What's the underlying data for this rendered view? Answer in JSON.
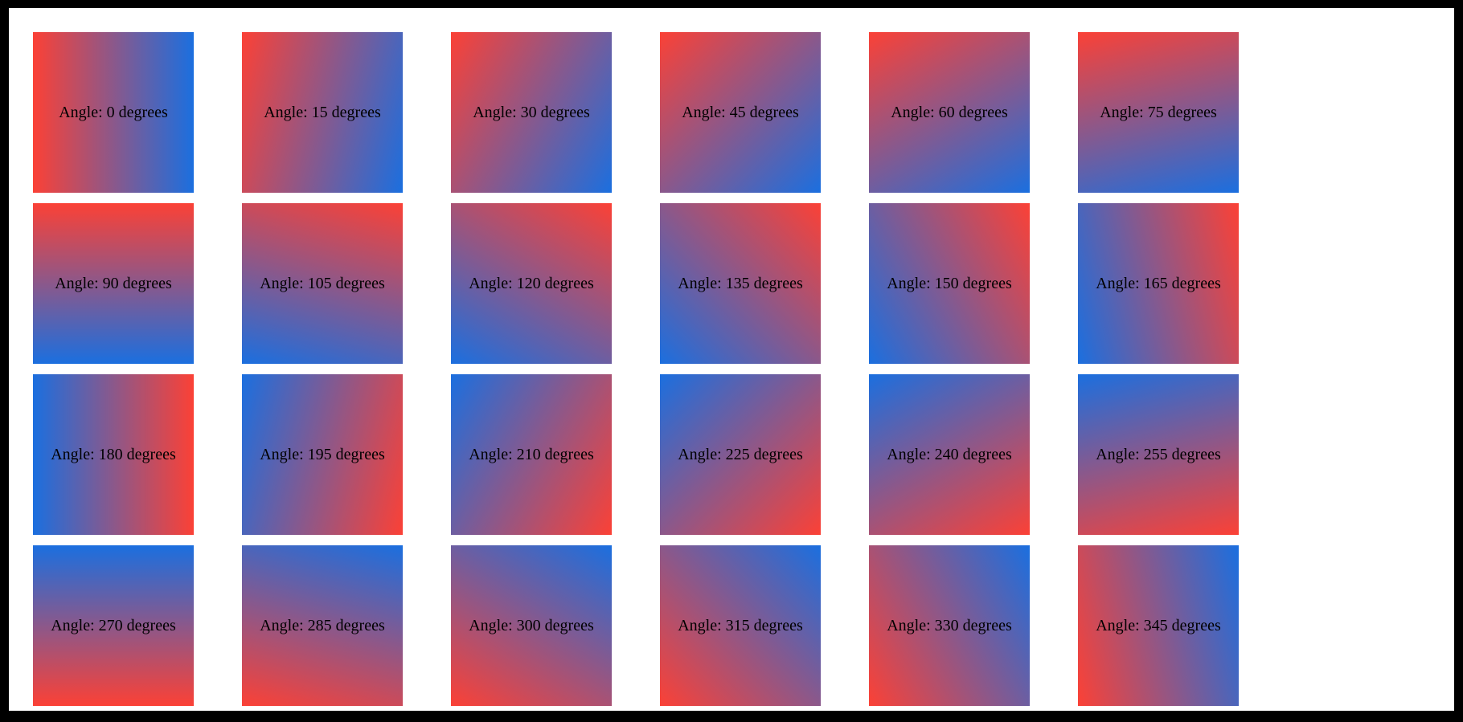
{
  "page": {
    "frame_color": "#000000",
    "surface_color": "#ffffff"
  },
  "gradient": {
    "start_color": "#fb4136",
    "end_color": "#1b6fdf",
    "angle_step_degrees": 15
  },
  "tiles": [
    {
      "angle": 0,
      "label": "Angle: 0 degrees"
    },
    {
      "angle": 15,
      "label": "Angle: 15 degrees"
    },
    {
      "angle": 30,
      "label": "Angle: 30 degrees"
    },
    {
      "angle": 45,
      "label": "Angle: 45 degrees"
    },
    {
      "angle": 60,
      "label": "Angle: 60 degrees"
    },
    {
      "angle": 75,
      "label": "Angle: 75 degrees"
    },
    {
      "angle": 90,
      "label": "Angle: 90 degrees"
    },
    {
      "angle": 105,
      "label": "Angle: 105 degrees"
    },
    {
      "angle": 120,
      "label": "Angle: 120 degrees"
    },
    {
      "angle": 135,
      "label": "Angle: 135 degrees"
    },
    {
      "angle": 150,
      "label": "Angle: 150 degrees"
    },
    {
      "angle": 165,
      "label": "Angle: 165 degrees"
    },
    {
      "angle": 180,
      "label": "Angle: 180 degrees"
    },
    {
      "angle": 195,
      "label": "Angle: 195 degrees"
    },
    {
      "angle": 210,
      "label": "Angle: 210 degrees"
    },
    {
      "angle": 225,
      "label": "Angle: 225 degrees"
    },
    {
      "angle": 240,
      "label": "Angle: 240 degrees"
    },
    {
      "angle": 255,
      "label": "Angle: 255 degrees"
    },
    {
      "angle": 270,
      "label": "Angle: 270 degrees"
    },
    {
      "angle": 285,
      "label": "Angle: 285 degrees"
    },
    {
      "angle": 300,
      "label": "Angle: 300 degrees"
    },
    {
      "angle": 315,
      "label": "Angle: 315 degrees"
    },
    {
      "angle": 330,
      "label": "Angle: 330 degrees"
    },
    {
      "angle": 345,
      "label": "Angle: 345 degrees"
    }
  ]
}
